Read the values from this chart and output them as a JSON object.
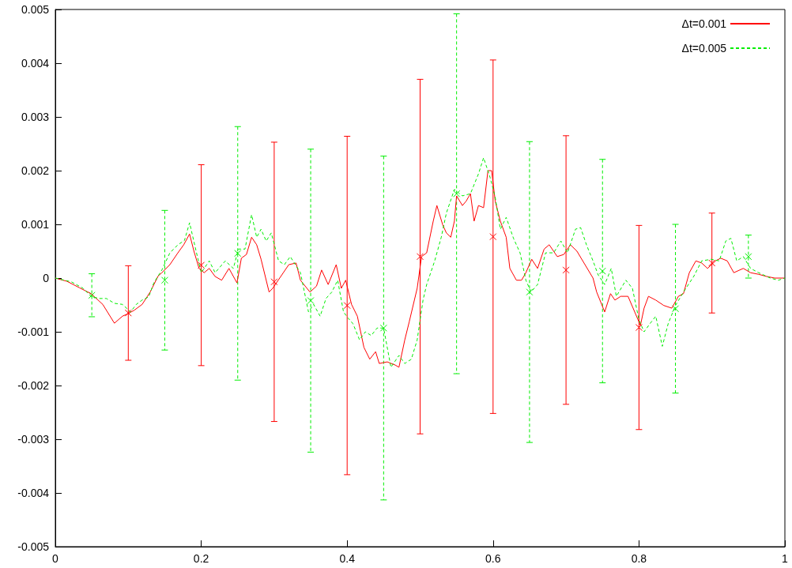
{
  "chart_data": {
    "type": "line",
    "xlim": [
      0,
      1
    ],
    "xticks": [
      0,
      0.2,
      0.4,
      0.6,
      0.8,
      1
    ],
    "ylim": [
      -0.005,
      0.005
    ],
    "yticks": [
      -0.005,
      -0.004,
      -0.003,
      -0.002,
      -0.001,
      0,
      0.001,
      0.002,
      0.003,
      0.004,
      0.005
    ],
    "grid": false,
    "legend": "top right",
    "series": [
      {
        "name": "Δt=0.001",
        "color": "#ff0000",
        "line_style": "solid",
        "x": [
          0,
          0.016,
          0.033,
          0.049,
          0.065,
          0.081,
          0.092,
          0.1,
          0.108,
          0.119,
          0.13,
          0.141,
          0.146,
          0.157,
          0.168,
          0.176,
          0.184,
          0.19,
          0.197,
          0.204,
          0.211,
          0.219,
          0.228,
          0.238,
          0.249,
          0.255,
          0.262,
          0.269,
          0.276,
          0.282,
          0.293,
          0.298,
          0.309,
          0.32,
          0.33,
          0.336,
          0.349,
          0.358,
          0.365,
          0.374,
          0.385,
          0.392,
          0.398,
          0.406,
          0.414,
          0.423,
          0.431,
          0.439,
          0.444,
          0.455,
          0.466,
          0.471,
          0.479,
          0.485,
          0.496,
          0.502,
          0.509,
          0.518,
          0.523,
          0.531,
          0.536,
          0.542,
          0.547,
          0.55,
          0.558,
          0.563,
          0.569,
          0.574,
          0.58,
          0.587,
          0.593,
          0.598,
          0.603,
          0.61,
          0.618,
          0.623,
          0.632,
          0.639,
          0.645,
          0.653,
          0.661,
          0.67,
          0.677,
          0.688,
          0.697,
          0.706,
          0.715,
          0.726,
          0.737,
          0.742,
          0.753,
          0.761,
          0.767,
          0.775,
          0.785,
          0.802,
          0.807,
          0.813,
          0.823,
          0.834,
          0.845,
          0.854,
          0.861,
          0.869,
          0.878,
          0.886,
          0.894,
          0.905,
          0.912,
          0.921,
          0.93,
          0.943,
          0.953,
          0.964,
          0.975,
          0.986,
          1
        ],
        "values": [
          0,
          -6e-05,
          -0.00018,
          -0.00029,
          -0.00049,
          -0.00084,
          -0.00071,
          -0.00066,
          -0.0006,
          -0.00049,
          -0.00026,
          4e-05,
          0.0001,
          0.00025,
          0.00047,
          0.00062,
          0.00082,
          0.0005,
          0.00018,
          0.0001,
          0.00018,
          3e-05,
          -4e-05,
          0.00018,
          -9e-05,
          0.00037,
          0.00044,
          0.00076,
          0.00062,
          0.00035,
          -0.00026,
          -0.00019,
          3e-05,
          0.00025,
          0.00028,
          -4e-05,
          -0.00026,
          -0.00015,
          0.00015,
          -0.00012,
          0.00025,
          -0.00019,
          -4e-05,
          -0.00049,
          -0.00071,
          -0.00129,
          -0.00151,
          -0.00137,
          -0.00159,
          -0.00156,
          -0.00162,
          -0.00166,
          -0.00115,
          -0.00082,
          -0.00019,
          0.0004,
          0.00047,
          0.00106,
          0.00135,
          0.00099,
          0.00084,
          0.00076,
          0.00106,
          0.00153,
          0.00135,
          0.00143,
          0.00157,
          0.00106,
          0.00135,
          0.00131,
          0.002,
          0.002,
          0.00143,
          0.00106,
          0.00076,
          0.00018,
          -4e-05,
          -4e-05,
          0.0001,
          0.00035,
          0.00018,
          0.00054,
          0.00062,
          0.0004,
          0.00044,
          0.00062,
          0.0005,
          0.00025,
          0,
          -0.00026,
          -0.00063,
          -0.00029,
          -0.00041,
          -0.00034,
          -0.00034,
          -0.00088,
          -0.00056,
          -0.00034,
          -0.00041,
          -0.00051,
          -0.00056,
          -0.00034,
          -0.00029,
          0.0001,
          0.00032,
          0.00028,
          0.00018,
          0.00032,
          0.00037,
          0.00032,
          0.0001,
          0.00018,
          0.0001,
          7e-05,
          3e-05,
          0,
          0
        ]
      },
      {
        "name": "Δt=0.005",
        "color": "#00ee00",
        "line_style": "dashed",
        "x": [
          0,
          0.022,
          0.038,
          0.049,
          0.06,
          0.07,
          0.081,
          0.092,
          0.103,
          0.111,
          0.119,
          0.128,
          0.135,
          0.146,
          0.157,
          0.168,
          0.177,
          0.184,
          0.193,
          0.2,
          0.211,
          0.219,
          0.233,
          0.244,
          0.251,
          0.26,
          0.269,
          0.276,
          0.282,
          0.289,
          0.296,
          0.306,
          0.314,
          0.322,
          0.336,
          0.347,
          0.354,
          0.363,
          0.371,
          0.379,
          0.387,
          0.395,
          0.401,
          0.408,
          0.417,
          0.425,
          0.433,
          0.441,
          0.45,
          0.46,
          0.471,
          0.479,
          0.488,
          0.496,
          0.504,
          0.509,
          0.52,
          0.529,
          0.536,
          0.547,
          0.558,
          0.569,
          0.58,
          0.587,
          0.596,
          0.603,
          0.61,
          0.618,
          0.628,
          0.637,
          0.645,
          0.652,
          0.661,
          0.672,
          0.683,
          0.693,
          0.702,
          0.713,
          0.72,
          0.728,
          0.737,
          0.744,
          0.753,
          0.762,
          0.769,
          0.782,
          0.791,
          0.8,
          0.807,
          0.815,
          0.823,
          0.832,
          0.84,
          0.85,
          0.861,
          0.875,
          0.886,
          0.899,
          0.91,
          0.919,
          0.926,
          0.934,
          0.943,
          0.953,
          0.964,
          0.98,
          0.991,
          1
        ],
        "values": [
          0,
          -7e-05,
          -0.00019,
          -0.00034,
          -0.00038,
          -0.00038,
          -0.00047,
          -0.00049,
          -0.00063,
          -0.00049,
          -0.00041,
          -0.00035,
          -9e-05,
          0.00015,
          0.00047,
          0.00062,
          0.0007,
          0.00103,
          0.0005,
          0.0001,
          0.00032,
          0.0001,
          0.00032,
          0.00018,
          0.00054,
          0.00054,
          0.00118,
          0.00076,
          0.00091,
          0.00069,
          0.00084,
          0.00032,
          0.00025,
          0.0004,
          0.0001,
          -0.00063,
          -0.00049,
          -0.00071,
          -0.00038,
          -0.00026,
          -4e-05,
          -0.00063,
          -0.00074,
          -0.00085,
          -0.00115,
          -0.001,
          -0.00107,
          -0.00093,
          -0.00093,
          -0.00166,
          -0.00144,
          -0.00159,
          -0.00151,
          -0.00115,
          -0.00041,
          -0.00012,
          0.00032,
          0.00076,
          0.00121,
          0.00165,
          0.00153,
          0.00157,
          0.00194,
          0.00224,
          0.00187,
          0.0015,
          0.00091,
          0.00113,
          0.00074,
          0.00047,
          -4e-05,
          -0.00026,
          -0.00012,
          0.00047,
          0.00047,
          0.00069,
          0.00047,
          0.00091,
          0.00094,
          0.00062,
          0.00032,
          6e-05,
          -0.00012,
          0.00018,
          -0.00034,
          -4e-05,
          -0.00019,
          -0.00078,
          -0.001,
          -0.00085,
          -0.00071,
          -0.00127,
          -0.00085,
          -0.00051,
          -0.00026,
          3e-05,
          0.00032,
          0.00035,
          0.00032,
          0.00069,
          0.00074,
          0.00032,
          0.0004,
          0.00018,
          0.0001,
          0,
          -4e-05,
          0
        ]
      },
      {
        "type": "scatter",
        "color": "#ff0000",
        "marker": "cross",
        "line_style": "solid",
        "x": [
          0.1,
          0.2,
          0.3,
          0.4,
          0.5,
          0.6,
          0.7,
          0.8,
          0.9
        ],
        "values": [
          -0.00065,
          0.00024,
          -7e-05,
          -0.00051,
          0.0004,
          0.00077,
          0.00015,
          -0.00092,
          0.00028
        ],
        "errors": [
          0.00088,
          0.00187,
          0.0026,
          0.00315,
          0.0033,
          0.00329,
          0.0025,
          0.0019,
          0.00093
        ]
      },
      {
        "type": "scatter",
        "color": "#00ee00",
        "marker": "cross",
        "line_style": "dashed",
        "x": [
          0.05,
          0.15,
          0.25,
          0.35,
          0.45,
          0.55,
          0.65,
          0.75,
          0.85,
          0.95
        ],
        "values": [
          -0.00032,
          -4e-05,
          0.00046,
          -0.00042,
          -0.00093,
          0.00157,
          -0.00026,
          0.00013,
          -0.00057,
          0.0004
        ],
        "errors": [
          0.0004,
          0.0013,
          0.00236,
          0.00282,
          0.0032,
          0.00335,
          0.0028,
          0.00208,
          0.00157,
          0.0004
        ]
      }
    ]
  }
}
